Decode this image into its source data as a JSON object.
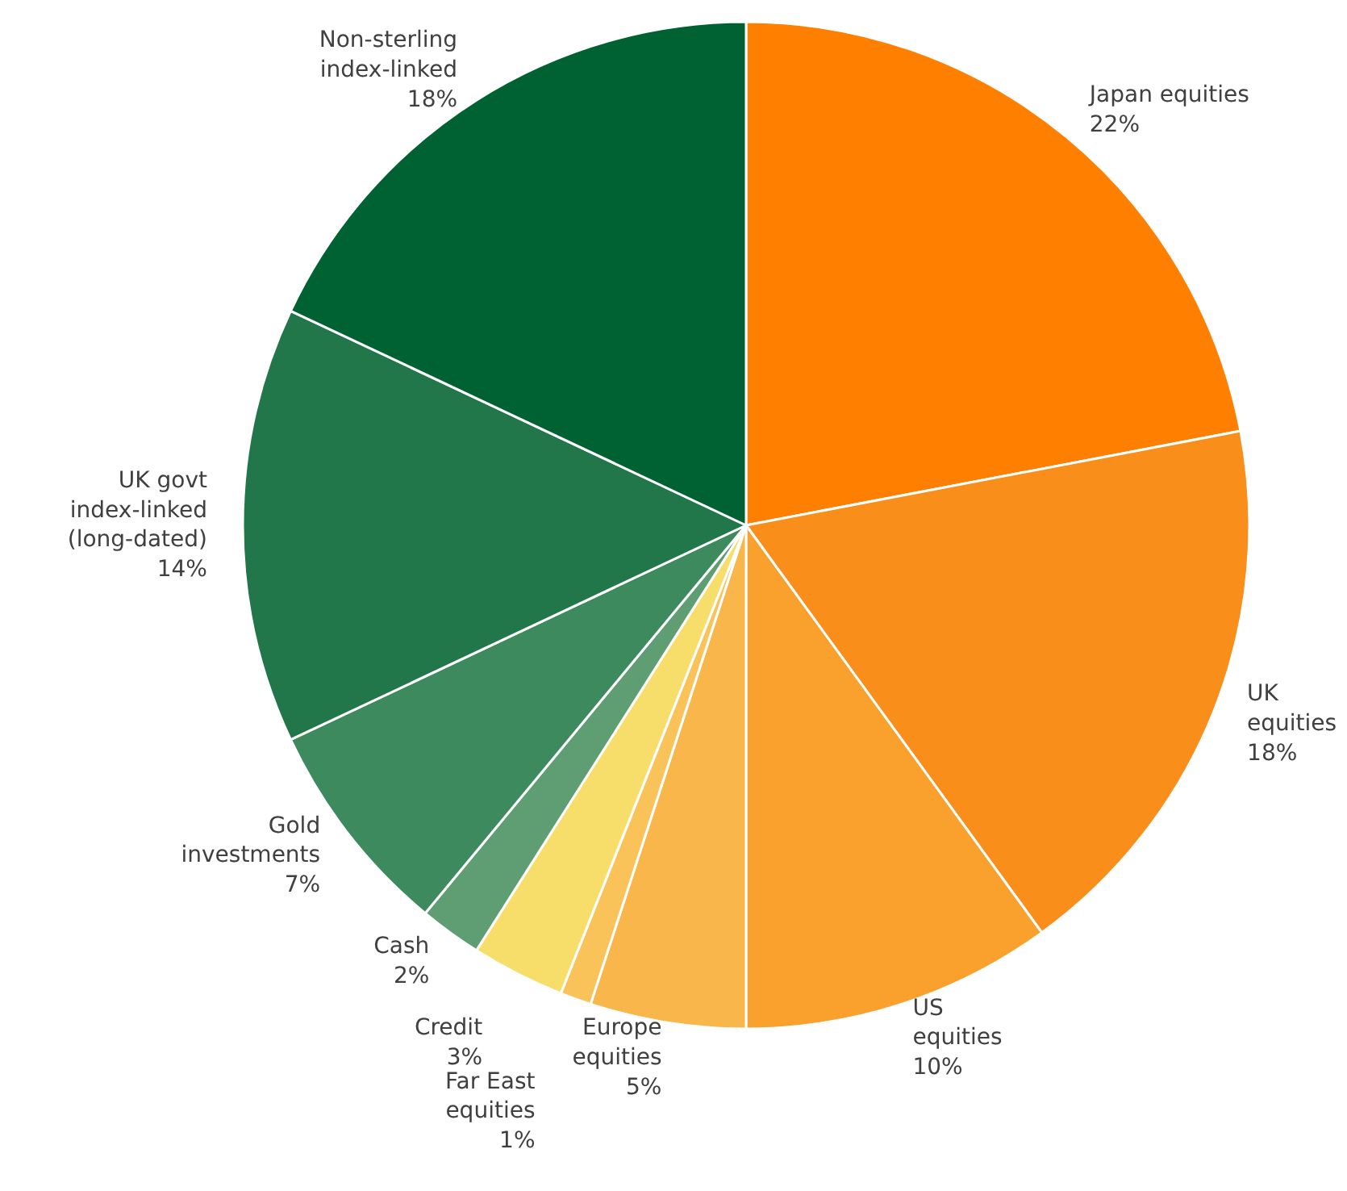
{
  "chart_data": {
    "type": "pie",
    "categories": [
      "Japan equities",
      "UK\nequities",
      "US\nequities",
      "Europe\nequities",
      "Far East\nequities",
      "Credit",
      "Cash",
      "Gold\ninvestments",
      "UK govt\nindex-linked\n(long-dated)",
      "Non-sterling\nindex-linked"
    ],
    "values": [
      22,
      18,
      10,
      5,
      1,
      3,
      2,
      7,
      14,
      18
    ],
    "value_labels": [
      "22%",
      "18%",
      "10%",
      "5%",
      "1%",
      "3%",
      "2%",
      "7%",
      "14%",
      "18%"
    ],
    "colors": [
      "#ff7f00",
      "#f98e1a",
      "#f9a12c",
      "#f9b64a",
      "#f9c35a",
      "#f7de6a",
      "#5e9e72",
      "#3d8a5e",
      "#22774a",
      "#006233"
    ]
  }
}
